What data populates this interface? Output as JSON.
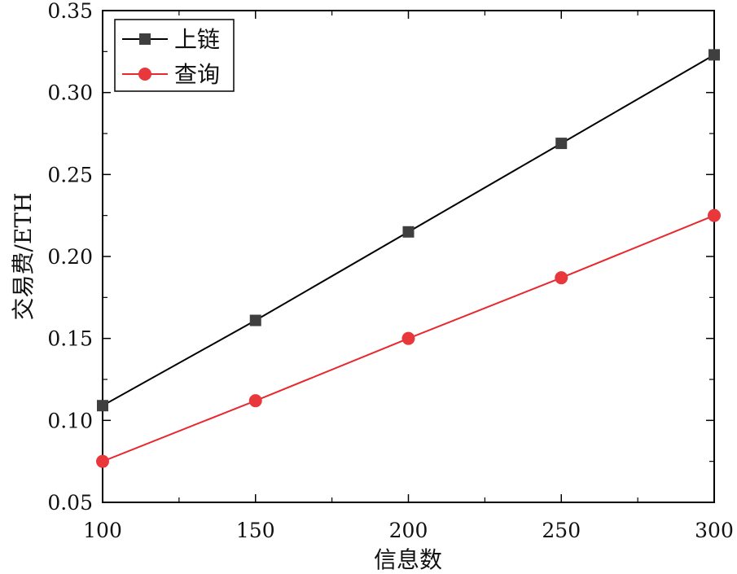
{
  "chart_data": {
    "type": "line",
    "x": [
      100,
      150,
      200,
      250,
      300
    ],
    "xlim": [
      100,
      300
    ],
    "ylim": [
      0.05,
      0.35
    ],
    "xticks": [
      "100",
      "150",
      "200",
      "250",
      "300"
    ],
    "yticks": [
      "0.05",
      "0.10",
      "0.15",
      "0.20",
      "0.25",
      "0.30",
      "0.35"
    ],
    "xlabel": "信息数",
    "ylabel": "交易费/ETH",
    "legend_position": "top-left",
    "grid": false,
    "series": [
      {
        "name": "上链",
        "values": [
          0.109,
          0.161,
          0.215,
          0.269,
          0.323
        ],
        "color": "#000000",
        "marker": "square",
        "marker_color": "#3f3f3f"
      },
      {
        "name": "查询",
        "values": [
          0.075,
          0.112,
          0.15,
          0.187,
          0.225
        ],
        "color": "#e8282d",
        "marker": "circle",
        "marker_color": "#e8383c"
      }
    ]
  }
}
